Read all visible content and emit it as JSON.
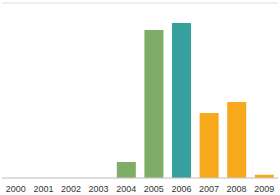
{
  "chart_data": {
    "type": "bar",
    "categories": [
      "2000",
      "2001",
      "2002",
      "2003",
      "2004",
      "2005",
      "2006",
      "2007",
      "2008",
      "2009"
    ],
    "values": [
      0,
      0,
      0,
      0,
      0.46,
      4.23,
      4.43,
      1.86,
      2.17,
      0.09
    ],
    "colors": [
      "#7fac66",
      "#7fac66",
      "#7fac66",
      "#7fac66",
      "#7fac66",
      "#7fac66",
      "#36a09c",
      "#f7a81b",
      "#f7a81b",
      "#f7a81b"
    ],
    "ylim": [
      0,
      5
    ],
    "yticks": [
      0,
      1,
      2,
      3,
      4,
      5
    ],
    "grid": true,
    "tick_labels": "x"
  }
}
